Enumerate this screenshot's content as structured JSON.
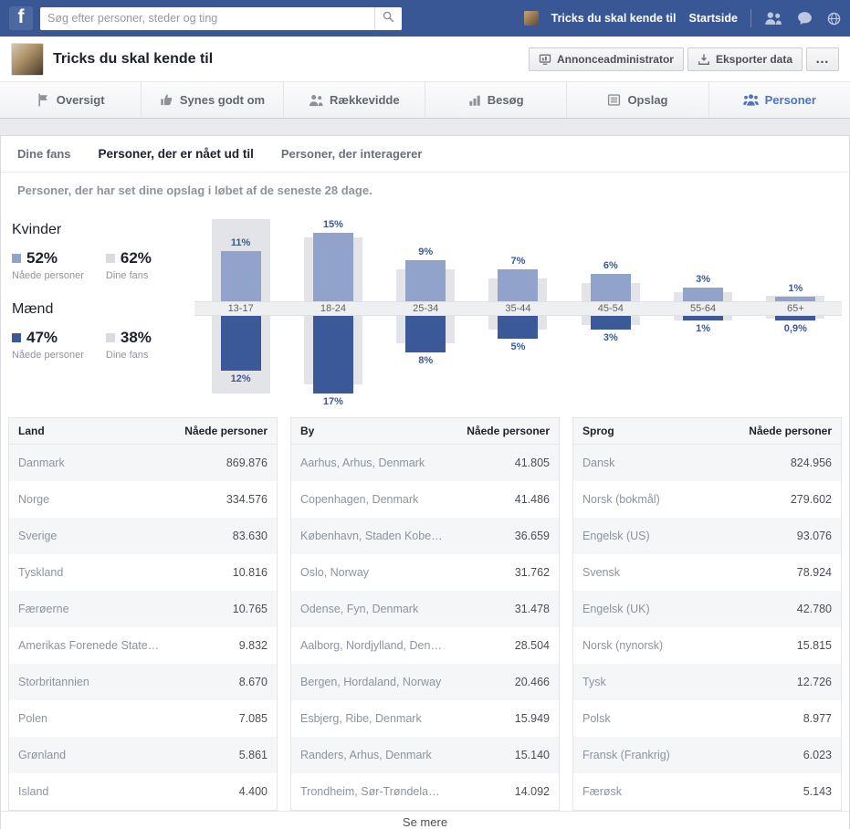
{
  "topbar": {
    "logo": "f",
    "search": {
      "placeholder": "Søg efter personer, steder og ting"
    },
    "profile_name": "Tricks du skal kende til",
    "home_label": "Startside",
    "icons": [
      "friends-icon",
      "messages-icon",
      "globe-icon"
    ]
  },
  "page_header": {
    "title": "Tricks du skal kende til",
    "ads_button": "Annonceadministrator",
    "export_button": "Eksporter data",
    "more_button": "…"
  },
  "nav_tabs": [
    {
      "label": "Oversigt",
      "icon": "overview-icon",
      "active": false
    },
    {
      "label": "Synes godt om",
      "icon": "thumbs-up-icon",
      "active": false
    },
    {
      "label": "Rækkevidde",
      "icon": "reach-icon",
      "active": false
    },
    {
      "label": "Besøg",
      "icon": "visits-icon",
      "active": false
    },
    {
      "label": "Opslag",
      "icon": "posts-icon",
      "active": false
    },
    {
      "label": "Personer",
      "icon": "people-icon",
      "active": true
    }
  ],
  "subtabs": [
    {
      "label": "Dine fans",
      "active": false
    },
    {
      "label": "Personer, der er nået ud til",
      "active": true
    },
    {
      "label": "Personer, der interagerer",
      "active": false
    }
  ],
  "chart_intro": "Personer, der har set dine opslag i løbet af de seneste 28 dage.",
  "legend": {
    "women_title": "Kvinder",
    "women_reached_pct": "52%",
    "women_fans_pct": "62%",
    "men_title": "Mænd",
    "men_reached_pct": "47%",
    "men_fans_pct": "38%",
    "reached_label": "Nåede personer",
    "fans_label": "Dine fans"
  },
  "chart_data": {
    "type": "bar",
    "orientation": "diverging-vertical",
    "unit": "%",
    "title": "Personer, der har set dine opslag i løbet af de seneste 28 dage.",
    "categories": [
      "13-17",
      "18-24",
      "25-34",
      "35-44",
      "45-54",
      "55-64",
      "65+"
    ],
    "series": [
      {
        "name": "Kvinder – Nåede personer",
        "color": "#92a3cb",
        "values": [
          11,
          15,
          9,
          7,
          6,
          3,
          1
        ],
        "labels": [
          "11%",
          "15%",
          "9%",
          "7%",
          "6%",
          "3%",
          "1%"
        ]
      },
      {
        "name": "Kvinder – Dine fans",
        "color": "#e3e4e7",
        "estimated": true,
        "values": [
          18,
          14,
          7,
          5,
          4,
          2,
          1.2
        ]
      },
      {
        "name": "Mænd – Nåede personer",
        "color": "#3b5998",
        "values": [
          12,
          17,
          8,
          5,
          3,
          1,
          0.9
        ],
        "labels": [
          "12%",
          "17%",
          "8%",
          "5%",
          "3%",
          "1%",
          "0,9%"
        ]
      },
      {
        "name": "Mænd – Dine fans",
        "color": "#e3e4e7",
        "estimated": true,
        "values": [
          17,
          15,
          6,
          3,
          2,
          1,
          0.6
        ]
      }
    ]
  },
  "tables": [
    {
      "col1": "Land",
      "col2": "Nåede personer",
      "rows": [
        [
          "Danmark",
          "869.876"
        ],
        [
          "Norge",
          "334.576"
        ],
        [
          "Sverige",
          "83.630"
        ],
        [
          "Tyskland",
          "10.816"
        ],
        [
          "Færøerne",
          "10.765"
        ],
        [
          "Amerikas Forenede State…",
          "9.832"
        ],
        [
          "Storbritannien",
          "8.670"
        ],
        [
          "Polen",
          "7.085"
        ],
        [
          "Grønland",
          "5.861"
        ],
        [
          "Island",
          "4.400"
        ]
      ]
    },
    {
      "col1": "By",
      "col2": "Nåede personer",
      "rows": [
        [
          "Aarhus, Arhus, Denmark",
          "41.805"
        ],
        [
          "Copenhagen, Denmark",
          "41.486"
        ],
        [
          "København, Staden Kobe…",
          "36.659"
        ],
        [
          "Oslo, Norway",
          "31.762"
        ],
        [
          "Odense, Fyn, Denmark",
          "31.478"
        ],
        [
          "Aalborg, Nordjylland, Den…",
          "28.504"
        ],
        [
          "Bergen, Hordaland, Norway",
          "20.466"
        ],
        [
          "Esbjerg, Ribe, Denmark",
          "15.949"
        ],
        [
          "Randers, Arhus, Denmark",
          "15.140"
        ],
        [
          "Trondheim, Sør-Trøndela…",
          "14.092"
        ]
      ]
    },
    {
      "col1": "Sprog",
      "col2": "Nåede personer",
      "rows": [
        [
          "Dansk",
          "824.956"
        ],
        [
          "Norsk (bokmål)",
          "279.602"
        ],
        [
          "Engelsk (US)",
          "93.076"
        ],
        [
          "Svensk",
          "78.924"
        ],
        [
          "Engelsk (UK)",
          "42.780"
        ],
        [
          "Norsk (nynorsk)",
          "15.815"
        ],
        [
          "Tysk",
          "12.726"
        ],
        [
          "Polsk",
          "8.977"
        ],
        [
          "Fransk (Frankrig)",
          "6.023"
        ],
        [
          "Færøsk",
          "5.143"
        ]
      ]
    }
  ],
  "footer": {
    "see_more": "Se mere"
  }
}
